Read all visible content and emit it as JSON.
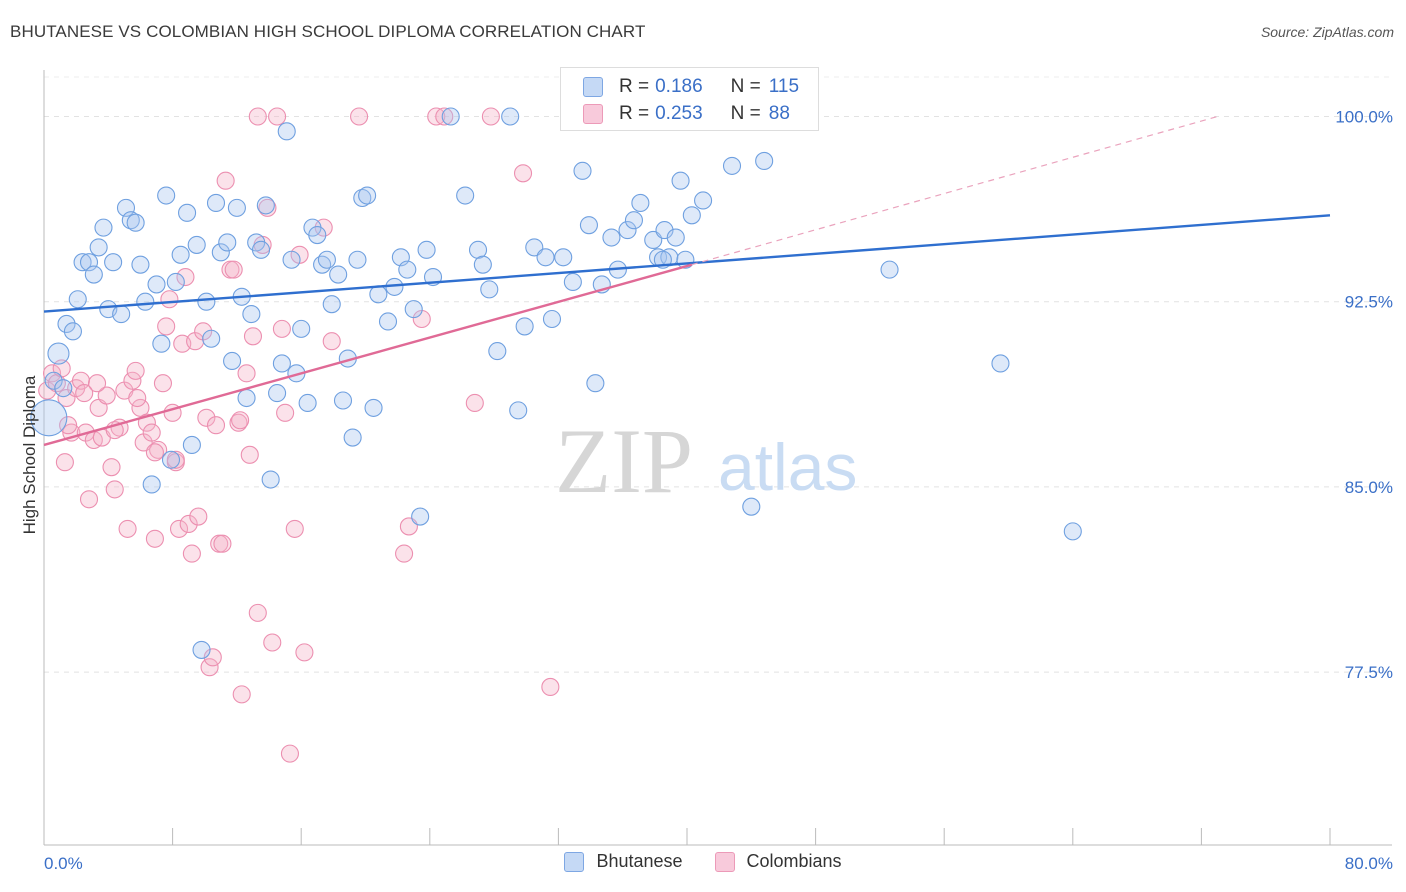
{
  "title": "BHUTANESE VS COLOMBIAN HIGH SCHOOL DIPLOMA CORRELATION CHART",
  "source": "Source: ZipAtlas.com",
  "watermark": {
    "zip": "ZIP",
    "atlas": "atlas"
  },
  "legend": {
    "rows": [
      {
        "r_label": "R =",
        "r_value": "0.186",
        "n_label": "N =",
        "n_value": "115",
        "color": "#a8c6f0"
      },
      {
        "r_label": "R =",
        "r_value": "0.253",
        "n_label": "N =",
        "n_value": "88",
        "color": "#f5b3c8"
      }
    ]
  },
  "bottom_legend": [
    "Bhutanese",
    "Colombians"
  ],
  "chart_data": {
    "type": "scatter",
    "title": "BHUTANESE VS COLOMBIAN HIGH SCHOOL DIPLOMA CORRELATION CHART",
    "xlabel": "",
    "ylabel": "High School Diploma",
    "xlim": [
      0,
      80
    ],
    "ylim": [
      70.5,
      101.6
    ],
    "x_tick_labels": [
      "0.0%",
      "80.0%"
    ],
    "y_ticks": [
      77.5,
      85.0,
      92.5,
      100.0
    ],
    "y_tick_labels": [
      "77.5%",
      "85.0%",
      "92.5%",
      "100.0%"
    ],
    "grid": true,
    "colors": {
      "bhutanese": "#6fa0e0",
      "colombians": "#ec8fb0",
      "blue_line": "#2f6fcf",
      "pink_line": "#e06a96",
      "tick_text": "#3a6fc7"
    },
    "series": [
      {
        "name": "Bhutanese",
        "trend": {
          "x": [
            0,
            80
          ],
          "y": [
            92.1,
            96.0
          ]
        },
        "points": [
          [
            0.3,
            87.8
          ],
          [
            0.6,
            89.3
          ],
          [
            0.9,
            90.4
          ],
          [
            1.2,
            89.0
          ],
          [
            1.4,
            91.6
          ],
          [
            1.8,
            91.3
          ],
          [
            2.1,
            92.6
          ],
          [
            2.4,
            94.1
          ],
          [
            2.8,
            94.1
          ],
          [
            3.1,
            93.6
          ],
          [
            3.4,
            94.7
          ],
          [
            3.7,
            95.5
          ],
          [
            4.0,
            92.2
          ],
          [
            4.3,
            94.1
          ],
          [
            4.8,
            92.0
          ],
          [
            5.1,
            96.3
          ],
          [
            5.4,
            95.8
          ],
          [
            5.7,
            95.7
          ],
          [
            6.0,
            94.0
          ],
          [
            6.3,
            92.5
          ],
          [
            6.7,
            85.1
          ],
          [
            7.0,
            93.2
          ],
          [
            7.3,
            90.8
          ],
          [
            7.6,
            96.8
          ],
          [
            7.9,
            86.1
          ],
          [
            8.2,
            93.3
          ],
          [
            8.5,
            94.4
          ],
          [
            8.9,
            96.1
          ],
          [
            9.2,
            86.7
          ],
          [
            9.5,
            94.8
          ],
          [
            9.8,
            78.4
          ],
          [
            10.1,
            92.5
          ],
          [
            10.4,
            91.0
          ],
          [
            10.7,
            96.5
          ],
          [
            11.0,
            94.5
          ],
          [
            11.4,
            94.9
          ],
          [
            11.7,
            90.1
          ],
          [
            12.0,
            96.3
          ],
          [
            12.3,
            92.7
          ],
          [
            12.6,
            88.6
          ],
          [
            12.9,
            92.0
          ],
          [
            13.2,
            94.9
          ],
          [
            13.5,
            94.6
          ],
          [
            13.8,
            96.4
          ],
          [
            14.1,
            85.3
          ],
          [
            14.5,
            88.8
          ],
          [
            14.8,
            90.0
          ],
          [
            15.1,
            99.4
          ],
          [
            15.4,
            94.2
          ],
          [
            15.7,
            89.6
          ],
          [
            16.0,
            91.4
          ],
          [
            16.4,
            88.4
          ],
          [
            16.7,
            95.5
          ],
          [
            17.0,
            95.2
          ],
          [
            17.3,
            94.0
          ],
          [
            17.6,
            94.2
          ],
          [
            17.9,
            92.4
          ],
          [
            18.3,
            93.6
          ],
          [
            18.6,
            88.5
          ],
          [
            18.9,
            90.2
          ],
          [
            19.2,
            87.0
          ],
          [
            19.5,
            94.2
          ],
          [
            19.8,
            96.7
          ],
          [
            20.1,
            96.8
          ],
          [
            20.5,
            88.2
          ],
          [
            20.8,
            92.8
          ],
          [
            21.4,
            91.7
          ],
          [
            21.8,
            93.1
          ],
          [
            22.2,
            94.3
          ],
          [
            22.6,
            93.8
          ],
          [
            23.0,
            92.2
          ],
          [
            23.4,
            83.8
          ],
          [
            23.8,
            94.6
          ],
          [
            24.2,
            93.5
          ],
          [
            25.3,
            100.0
          ],
          [
            26.2,
            96.8
          ],
          [
            27.0,
            94.6
          ],
          [
            27.3,
            94.0
          ],
          [
            27.7,
            93.0
          ],
          [
            28.2,
            90.5
          ],
          [
            29.0,
            100.0
          ],
          [
            29.5,
            88.1
          ],
          [
            29.9,
            91.5
          ],
          [
            30.5,
            94.7
          ],
          [
            31.2,
            94.3
          ],
          [
            31.6,
            91.8
          ],
          [
            32.3,
            94.3
          ],
          [
            32.9,
            93.3
          ],
          [
            33.5,
            97.8
          ],
          [
            33.9,
            95.6
          ],
          [
            34.3,
            89.2
          ],
          [
            34.7,
            93.2
          ],
          [
            35.3,
            95.1
          ],
          [
            35.7,
            93.8
          ],
          [
            36.3,
            95.4
          ],
          [
            36.7,
            95.8
          ],
          [
            37.1,
            96.5
          ],
          [
            37.9,
            95.0
          ],
          [
            38.2,
            94.3
          ],
          [
            38.6,
            95.4
          ],
          [
            38.9,
            94.3
          ],
          [
            39.3,
            95.1
          ],
          [
            39.6,
            97.4
          ],
          [
            39.9,
            94.2
          ],
          [
            40.3,
            96.0
          ],
          [
            41.0,
            96.6
          ],
          [
            42.8,
            98.0
          ],
          [
            43.0,
            100.0
          ],
          [
            44.8,
            98.2
          ],
          [
            52.6,
            93.8
          ],
          [
            59.5,
            90.0
          ],
          [
            64.0,
            83.2
          ],
          [
            46.0,
            100.0
          ],
          [
            44.0,
            84.2
          ],
          [
            38.5,
            94.2
          ]
        ]
      },
      {
        "name": "Colombians",
        "trend": {
          "x": [
            0,
            40.3
          ],
          "y": [
            86.7,
            94.0
          ]
        },
        "dashed_extension": {
          "x": [
            40.3,
            73
          ],
          "y": [
            94.0,
            100.0
          ]
        },
        "points": [
          [
            0.2,
            88.9
          ],
          [
            0.5,
            89.6
          ],
          [
            0.8,
            89.2
          ],
          [
            1.1,
            89.8
          ],
          [
            1.4,
            88.6
          ],
          [
            1.7,
            87.2
          ],
          [
            2.0,
            89.0
          ],
          [
            2.3,
            89.3
          ],
          [
            2.6,
            87.2
          ],
          [
            2.8,
            84.5
          ],
          [
            1.3,
            86.0
          ],
          [
            3.1,
            86.9
          ],
          [
            3.4,
            88.2
          ],
          [
            3.6,
            87.0
          ],
          [
            3.9,
            88.7
          ],
          [
            4.2,
            85.8
          ],
          [
            4.4,
            84.9
          ],
          [
            4.7,
            87.4
          ],
          [
            5.0,
            88.9
          ],
          [
            5.2,
            83.3
          ],
          [
            5.5,
            89.3
          ],
          [
            5.7,
            89.7
          ],
          [
            6.0,
            88.2
          ],
          [
            6.2,
            86.8
          ],
          [
            6.4,
            87.6
          ],
          [
            6.7,
            87.2
          ],
          [
            6.9,
            82.9
          ],
          [
            7.1,
            86.5
          ],
          [
            7.4,
            89.2
          ],
          [
            7.6,
            91.5
          ],
          [
            7.8,
            92.6
          ],
          [
            8.0,
            88.0
          ],
          [
            8.2,
            86.0
          ],
          [
            8.4,
            83.3
          ],
          [
            8.6,
            90.8
          ],
          [
            8.8,
            93.5
          ],
          [
            9.0,
            83.5
          ],
          [
            9.2,
            82.3
          ],
          [
            9.4,
            90.9
          ],
          [
            9.6,
            83.8
          ],
          [
            9.9,
            91.3
          ],
          [
            10.1,
            87.8
          ],
          [
            10.3,
            77.7
          ],
          [
            10.5,
            78.1
          ],
          [
            10.7,
            87.5
          ],
          [
            10.9,
            82.7
          ],
          [
            11.1,
            82.7
          ],
          [
            11.3,
            97.4
          ],
          [
            11.6,
            93.8
          ],
          [
            11.8,
            93.8
          ],
          [
            12.1,
            87.6
          ],
          [
            12.3,
            76.6
          ],
          [
            12.6,
            89.6
          ],
          [
            12.8,
            86.3
          ],
          [
            13.0,
            91.1
          ],
          [
            13.3,
            79.9
          ],
          [
            13.3,
            100.0
          ],
          [
            13.6,
            94.8
          ],
          [
            13.9,
            96.3
          ],
          [
            14.2,
            78.7
          ],
          [
            14.5,
            100.0
          ],
          [
            14.8,
            91.4
          ],
          [
            15.0,
            88.0
          ],
          [
            15.3,
            74.2
          ],
          [
            15.6,
            83.3
          ],
          [
            15.9,
            94.4
          ],
          [
            16.2,
            78.3
          ],
          [
            17.4,
            95.5
          ],
          [
            17.9,
            90.9
          ],
          [
            19.6,
            100.0
          ],
          [
            22.4,
            82.3
          ],
          [
            22.7,
            83.4
          ],
          [
            23.5,
            91.8
          ],
          [
            24.4,
            100.0
          ],
          [
            24.9,
            100.0
          ],
          [
            26.8,
            88.4
          ],
          [
            27.8,
            100.0
          ],
          [
            29.8,
            97.7
          ],
          [
            31.5,
            76.9
          ],
          [
            33.0,
            100.0
          ],
          [
            3.3,
            89.2
          ],
          [
            4.4,
            87.3
          ],
          [
            6.9,
            86.4
          ],
          [
            12.2,
            87.7
          ],
          [
            1.5,
            87.5
          ],
          [
            2.5,
            88.8
          ],
          [
            5.8,
            88.6
          ],
          [
            8.2,
            86.1
          ]
        ]
      }
    ]
  }
}
